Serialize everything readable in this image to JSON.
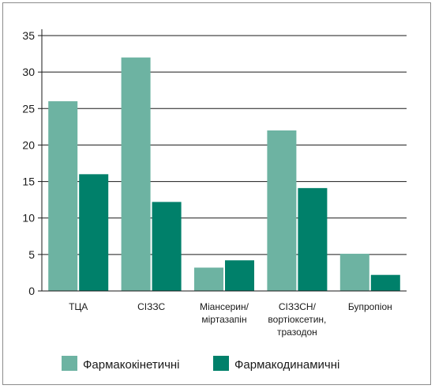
{
  "chart_data": {
    "type": "bar",
    "categories": [
      [
        "ТЦА"
      ],
      [
        "СІЗЗС"
      ],
      [
        "Міансерин/",
        "міртазапін"
      ],
      [
        "СІЗЗСН/",
        "вортіоксетин,",
        "тразодон"
      ],
      [
        "Бупропіон"
      ]
    ],
    "series": [
      {
        "name": "Фармакокінетичні",
        "values": [
          26,
          32,
          3.2,
          22,
          5.1
        ],
        "color": "#6db3a2"
      },
      {
        "name": "Фармакодинамичні",
        "values": [
          16,
          12.2,
          4.2,
          14.1,
          2.2
        ],
        "color": "#00806a"
      }
    ],
    "ylim": [
      0,
      35
    ],
    "yticks": [
      0,
      5,
      10,
      15,
      20,
      25,
      30,
      35
    ],
    "grid": true,
    "legend_position": "bottom"
  }
}
